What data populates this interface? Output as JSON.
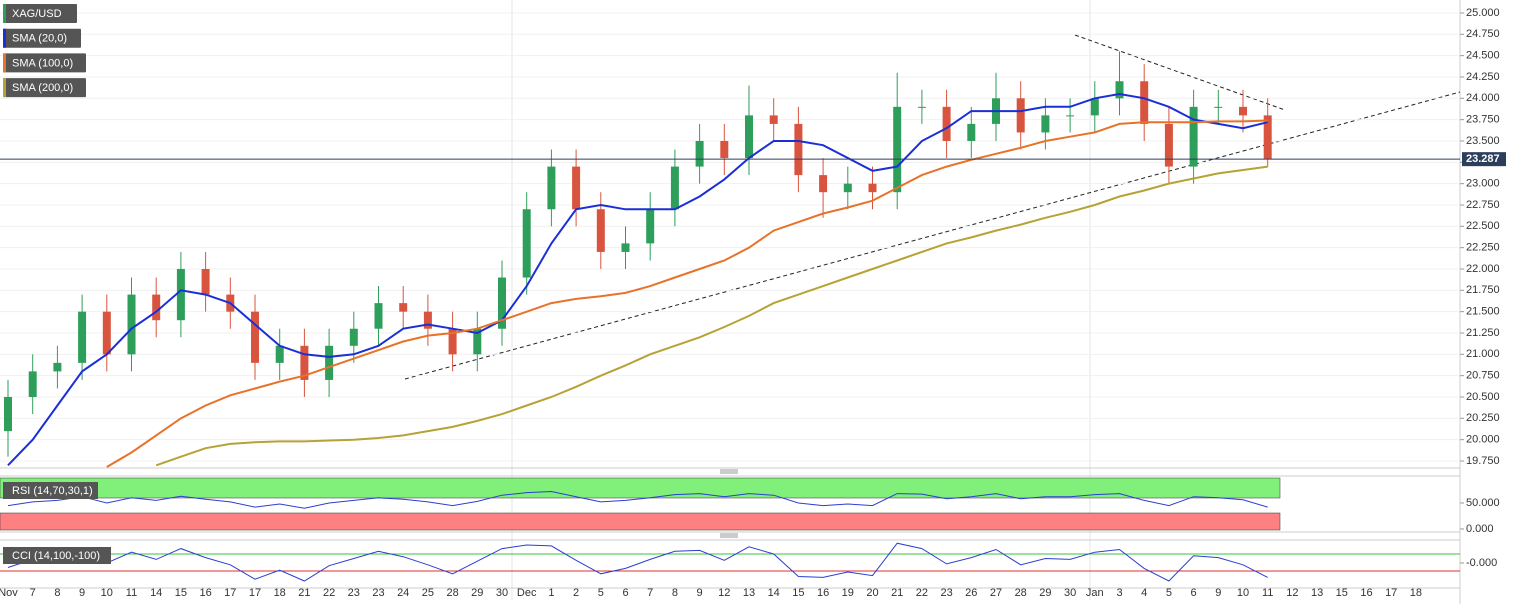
{
  "chart_data": [
    {
      "type": "candlestick",
      "name": "XAG/USD",
      "color": "#2e9e5b",
      "up_color": "#2e9e5b",
      "down_color": "#d9543f",
      "categories": [
        "Nov",
        "7",
        "8",
        "9",
        "10",
        "11",
        "14",
        "15",
        "16",
        "17",
        "17",
        "18",
        "21",
        "22",
        "23",
        "23",
        "24",
        "25",
        "28",
        "29",
        "30",
        "Dec",
        "1",
        "2",
        "5",
        "6",
        "7",
        "8",
        "9",
        "12",
        "13",
        "14",
        "15",
        "16",
        "19",
        "20",
        "21",
        "22",
        "23",
        "26",
        "27",
        "28",
        "29",
        "30",
        "Jan",
        "3",
        "4",
        "5",
        "6",
        "9",
        "10",
        "11",
        "12",
        "13",
        "15",
        "16",
        "17",
        "18"
      ],
      "open": [
        20.1,
        20.5,
        20.8,
        20.9,
        21.5,
        21.0,
        21.7,
        21.4,
        22.0,
        21.7,
        21.5,
        20.9,
        21.1,
        20.7,
        21.1,
        21.3,
        21.6,
        21.5,
        21.3,
        21.0,
        21.3,
        21.9,
        22.7,
        23.2,
        22.7,
        22.2,
        22.3,
        22.7,
        23.2,
        23.5,
        23.3,
        23.8,
        23.7,
        23.1,
        22.9,
        23.0,
        22.9,
        23.9,
        23.9,
        23.5,
        23.7,
        24.0,
        23.6,
        23.8,
        23.8,
        24.0,
        24.2,
        23.7,
        23.2,
        23.9,
        23.9,
        23.8,
        null,
        null,
        null,
        null,
        null,
        null
      ],
      "high": [
        20.7,
        21.0,
        21.1,
        21.7,
        21.7,
        21.9,
        21.9,
        22.2,
        22.2,
        21.9,
        21.7,
        21.3,
        21.3,
        21.3,
        21.5,
        21.8,
        21.8,
        21.7,
        21.5,
        21.5,
        22.1,
        22.9,
        23.4,
        23.4,
        22.9,
        22.5,
        22.9,
        23.4,
        23.7,
        23.7,
        24.15,
        24.0,
        23.9,
        23.3,
        23.2,
        23.2,
        24.3,
        24.1,
        24.1,
        23.9,
        24.3,
        24.2,
        24.0,
        24.0,
        24.2,
        24.55,
        24.4,
        23.9,
        24.1,
        24.1,
        24.1,
        24.0,
        null,
        null,
        null,
        null,
        null,
        null
      ],
      "low": [
        19.8,
        20.3,
        20.6,
        20.7,
        20.8,
        20.8,
        21.2,
        21.2,
        21.5,
        21.3,
        20.7,
        20.7,
        20.5,
        20.5,
        20.9,
        21.1,
        21.3,
        21.1,
        20.8,
        20.8,
        21.1,
        21.7,
        22.5,
        22.5,
        22.0,
        22.0,
        22.1,
        22.5,
        23.0,
        23.1,
        23.1,
        23.5,
        22.9,
        22.6,
        22.7,
        22.7,
        22.7,
        23.7,
        23.3,
        23.3,
        23.5,
        23.4,
        23.4,
        23.6,
        23.6,
        23.8,
        23.5,
        23.0,
        23.0,
        23.7,
        23.6,
        23.2,
        null,
        null,
        null,
        null,
        null,
        null
      ],
      "close": [
        20.5,
        20.8,
        20.9,
        21.5,
        21.0,
        21.7,
        21.4,
        22.0,
        21.7,
        21.5,
        20.9,
        21.1,
        20.7,
        21.1,
        21.3,
        21.6,
        21.5,
        21.3,
        21.0,
        21.3,
        21.9,
        22.7,
        23.2,
        22.7,
        22.2,
        22.3,
        22.7,
        23.2,
        23.5,
        23.3,
        23.8,
        23.7,
        23.1,
        22.9,
        23.0,
        22.9,
        23.9,
        23.9,
        23.5,
        23.7,
        24.0,
        23.6,
        23.8,
        23.8,
        24.0,
        24.2,
        23.7,
        23.2,
        23.9,
        23.9,
        23.8,
        23.29,
        null,
        null,
        null,
        null,
        null,
        null
      ],
      "series": [
        {
          "name": "SMA (20,0)",
          "color": "#1b2fd6",
          "values": [
            19.7,
            20.0,
            20.4,
            20.8,
            21.0,
            21.3,
            21.5,
            21.75,
            21.7,
            21.6,
            21.35,
            21.1,
            21.0,
            20.97,
            21.0,
            21.1,
            21.3,
            21.35,
            21.3,
            21.25,
            21.4,
            21.8,
            22.3,
            22.7,
            22.75,
            22.7,
            22.7,
            22.7,
            22.85,
            23.05,
            23.3,
            23.5,
            23.5,
            23.45,
            23.3,
            23.15,
            23.2,
            23.5,
            23.65,
            23.85,
            23.85,
            23.85,
            23.9,
            23.9,
            24.0,
            24.05,
            24.0,
            23.9,
            23.75,
            23.7,
            23.65,
            23.72,
            null,
            null,
            null,
            null,
            null,
            null
          ]
        },
        {
          "name": "SMA (100,0)",
          "color": "#e8722a",
          "values": [
            null,
            null,
            null,
            null,
            19.68,
            19.85,
            20.05,
            20.25,
            20.4,
            20.52,
            20.6,
            20.68,
            20.75,
            20.85,
            20.95,
            21.05,
            21.15,
            21.22,
            21.25,
            21.3,
            21.4,
            21.5,
            21.6,
            21.65,
            21.68,
            21.72,
            21.8,
            21.9,
            22.0,
            22.1,
            22.25,
            22.45,
            22.55,
            22.65,
            22.72,
            22.8,
            22.95,
            23.1,
            23.2,
            23.28,
            23.35,
            23.42,
            23.5,
            23.55,
            23.6,
            23.7,
            23.72,
            23.72,
            23.72,
            23.73,
            23.73,
            23.74,
            null,
            null,
            null,
            null,
            null,
            null
          ]
        },
        {
          "name": "SMA (200,0)",
          "color": "#b5a335",
          "values": [
            null,
            null,
            null,
            null,
            null,
            null,
            19.7,
            19.8,
            19.9,
            19.95,
            19.97,
            19.98,
            19.98,
            19.99,
            20.0,
            20.02,
            20.05,
            20.1,
            20.15,
            20.22,
            20.3,
            20.4,
            20.5,
            20.62,
            20.75,
            20.87,
            21.0,
            21.1,
            21.2,
            21.32,
            21.45,
            21.6,
            21.7,
            21.8,
            21.9,
            22.0,
            22.1,
            22.2,
            22.3,
            22.37,
            22.45,
            22.52,
            22.6,
            22.67,
            22.75,
            22.85,
            22.92,
            23.0,
            23.06,
            23.12,
            23.16,
            23.2,
            null,
            null,
            null,
            null,
            null,
            null
          ]
        }
      ],
      "last_price": 23.287,
      "ylim": [
        19.668,
        25.152
      ],
      "yticks": [
        {
          "value": 19.75,
          "label": "19.750"
        },
        {
          "value": 20.0,
          "label": "20.000"
        },
        {
          "value": 20.25,
          "label": "20.250"
        },
        {
          "value": 20.5,
          "label": "20.500"
        },
        {
          "value": 20.75,
          "label": "20.750"
        },
        {
          "value": 21.0,
          "label": "21.000"
        },
        {
          "value": 21.25,
          "label": "21.250"
        },
        {
          "value": 21.5,
          "label": "21.500"
        },
        {
          "value": 21.75,
          "label": "21.750"
        },
        {
          "value": 22.0,
          "label": "22.000"
        },
        {
          "value": 22.25,
          "label": "22.250"
        },
        {
          "value": 22.5,
          "label": "22.500"
        },
        {
          "value": 22.75,
          "label": "22.750"
        },
        {
          "value": 23.0,
          "label": "23.000"
        },
        {
          "value": 23.25,
          "label": "23.250"
        },
        {
          "value": 23.5,
          "label": "23.500"
        },
        {
          "value": 23.75,
          "label": "23.750"
        },
        {
          "value": 24.0,
          "label": "24.000"
        },
        {
          "value": 24.25,
          "label": "24.250"
        },
        {
          "value": 24.5,
          "label": "24.500"
        },
        {
          "value": 24.75,
          "label": "24.750"
        },
        {
          "value": 25.0,
          "label": "25.000"
        }
      ],
      "grid": true
    },
    {
      "type": "line",
      "name": "RSI (14,70,30,1)",
      "series": [
        {
          "color": "#2a3fd0",
          "values": [
            45,
            52,
            55,
            62,
            50,
            60,
            55,
            63,
            57,
            52,
            42,
            48,
            40,
            50,
            55,
            60,
            57,
            52,
            45,
            53,
            65,
            70,
            72,
            62,
            52,
            55,
            60,
            66,
            68,
            62,
            68,
            65,
            50,
            45,
            48,
            45,
            68,
            67,
            58,
            62,
            68,
            58,
            62,
            62,
            66,
            68,
            55,
            45,
            62,
            60,
            56,
            42,
            null,
            null,
            null,
            null,
            null,
            null
          ]
        }
      ],
      "ylim": [
        -2,
        98
      ],
      "yticks": [
        {
          "value": 50,
          "label": "50.000"
        },
        {
          "value": 0,
          "label": "0.000"
        }
      ],
      "grid": false
    },
    {
      "type": "line",
      "name": "CCI (14,100,-100)",
      "series": [
        {
          "color": "#2a3fd0",
          "values": [
            -50,
            40,
            60,
            150,
            0,
            120,
            40,
            160,
            60,
            -20,
            -180,
            -80,
            -200,
            -30,
            50,
            130,
            70,
            -20,
            -120,
            20,
            160,
            200,
            190,
            30,
            -120,
            -60,
            40,
            130,
            140,
            30,
            180,
            100,
            -150,
            -160,
            -100,
            -140,
            220,
            160,
            -10,
            60,
            150,
            -20,
            50,
            40,
            120,
            150,
            -60,
            -200,
            80,
            60,
            -20,
            -160,
            null,
            null,
            null,
            null,
            null,
            null
          ]
        }
      ],
      "ylim": [
        -300,
        222
      ],
      "yticks": [
        {
          "value": 0,
          "label": "-0.000"
        }
      ],
      "grid": false
    }
  ]
}
